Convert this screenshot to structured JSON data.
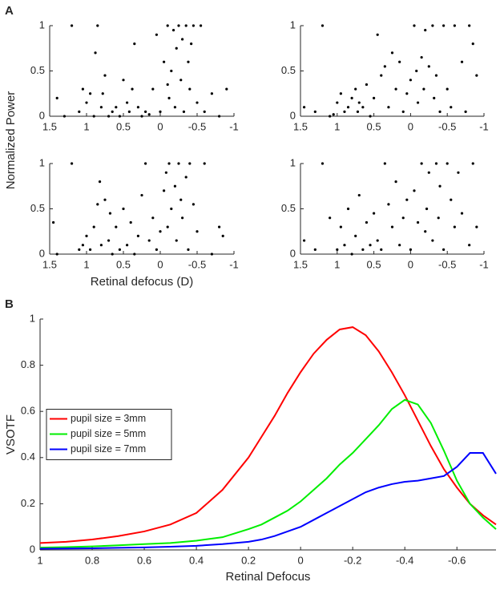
{
  "chart_data": [
    {
      "type": "scatter",
      "panel_label": "A",
      "color": "#000000",
      "x": [
        1.4,
        1.3,
        1.2,
        1.1,
        1.05,
        1.0,
        0.95,
        0.9,
        0.88,
        0.85,
        0.8,
        0.78,
        0.75,
        0.7,
        0.65,
        0.6,
        0.55,
        0.5,
        0.45,
        0.42,
        0.38,
        0.35,
        0.3,
        0.25,
        0.2,
        0.15,
        0.1,
        0.05,
        0,
        -0.05,
        -0.1,
        -0.1,
        -0.12,
        -0.15,
        -0.18,
        -0.2,
        -0.22,
        -0.25,
        -0.28,
        -0.3,
        -0.32,
        -0.35,
        -0.38,
        -0.4,
        -0.42,
        -0.45,
        -0.5,
        -0.55,
        -0.6,
        -0.7,
        -0.8,
        -0.9
      ],
      "values": [
        0.2,
        0,
        1,
        0.05,
        0.3,
        0.15,
        0.25,
        0,
        0.7,
        1,
        0.1,
        0.25,
        0.45,
        0,
        0.05,
        0.1,
        0,
        0.4,
        0.15,
        0.05,
        0.3,
        0.8,
        0.1,
        0,
        0.05,
        0.02,
        0.3,
        0.9,
        0.05,
        0.6,
        1,
        0.35,
        0.2,
        0.5,
        0.95,
        0.1,
        0.75,
        1,
        0.4,
        0.85,
        0.05,
        1,
        0.6,
        0.3,
        0.8,
        1,
        0.15,
        1,
        0.05,
        0.25,
        0,
        0.3
      ],
      "xlim": [
        1.5,
        -1
      ],
      "xticks": [
        1.5,
        1,
        0.5,
        0,
        -0.5,
        -1
      ],
      "ylim": [
        0,
        1
      ],
      "yticks": [
        0,
        0.5,
        1
      ]
    },
    {
      "type": "scatter",
      "color": "#000000",
      "x": [
        1.45,
        1.3,
        1.2,
        1.1,
        1.05,
        1.0,
        0.95,
        0.9,
        0.85,
        0.8,
        0.75,
        0.72,
        0.7,
        0.65,
        0.6,
        0.55,
        0.5,
        0.45,
        0.4,
        0.35,
        0.3,
        0.25,
        0.2,
        0.15,
        0.1,
        0.05,
        0,
        -0.05,
        -0.08,
        -0.1,
        -0.15,
        -0.18,
        -0.2,
        -0.25,
        -0.3,
        -0.32,
        -0.35,
        -0.4,
        -0.45,
        -0.5,
        -0.55,
        -0.6,
        -0.7,
        -0.75,
        -0.8,
        -0.85,
        -0.9
      ],
      "values": [
        0.1,
        0.05,
        1,
        0,
        0.02,
        0.15,
        0.25,
        0.05,
        0.1,
        0.2,
        0.3,
        0.05,
        0.15,
        0.1,
        0.35,
        0,
        0.2,
        0.9,
        0.45,
        0.55,
        0.1,
        0.7,
        0.3,
        0.6,
        0.05,
        0.25,
        0.4,
        1,
        0.5,
        0.15,
        0.65,
        0.3,
        0.95,
        0.55,
        1,
        0.2,
        0.45,
        0.05,
        1,
        0.3,
        0.1,
        1,
        0.6,
        0.05,
        1,
        0.8,
        0.45
      ],
      "xlim": [
        1.5,
        -1
      ],
      "xticks": [
        1.5,
        1,
        0.5,
        0,
        -0.5,
        -1
      ],
      "ylim": [
        0,
        1
      ],
      "yticks": [
        0,
        0.5,
        1
      ]
    },
    {
      "type": "scatter",
      "color": "#000000",
      "xlabel": "Retinal defocus (D)",
      "ylabel": "Normalized Power",
      "x": [
        1.45,
        1.4,
        1.2,
        1.1,
        1.05,
        1.0,
        0.95,
        0.9,
        0.85,
        0.82,
        0.8,
        0.75,
        0.7,
        0.68,
        0.65,
        0.6,
        0.55,
        0.5,
        0.45,
        0.4,
        0.35,
        0.3,
        0.25,
        0.2,
        0.15,
        0.1,
        0.05,
        0,
        -0.05,
        -0.08,
        -0.1,
        -0.12,
        -0.15,
        -0.2,
        -0.22,
        -0.25,
        -0.28,
        -0.3,
        -0.35,
        -0.38,
        -0.4,
        -0.45,
        -0.5,
        -0.6,
        -0.7,
        -0.8,
        -0.85
      ],
      "values": [
        0.35,
        0,
        1,
        0.05,
        0.1,
        0.2,
        0.05,
        0.3,
        0.55,
        0.8,
        0.1,
        0.6,
        0.15,
        0.45,
        0,
        0.3,
        0.05,
        0.5,
        0.1,
        0.35,
        0,
        0.2,
        0.65,
        1,
        0.15,
        0.4,
        0.05,
        0.25,
        0.7,
        0.9,
        0.3,
        1,
        0.5,
        0.75,
        0.15,
        1,
        0.6,
        0.4,
        0.85,
        0.05,
        1,
        0.55,
        0.25,
        1,
        0,
        0.3,
        0.2
      ],
      "xlim": [
        1.5,
        -1
      ],
      "xticks": [
        1.5,
        1,
        0.5,
        0,
        -0.5,
        -1
      ],
      "ylim": [
        0,
        1
      ],
      "yticks": [
        0,
        0.5,
        1
      ]
    },
    {
      "type": "scatter",
      "color": "#000000",
      "x": [
        1.45,
        1.3,
        1.2,
        1.1,
        1.0,
        0.95,
        0.9,
        0.85,
        0.8,
        0.75,
        0.7,
        0.65,
        0.6,
        0.55,
        0.5,
        0.45,
        0.4,
        0.35,
        0.3,
        0.25,
        0.2,
        0.15,
        0.1,
        0.05,
        0,
        -0.05,
        -0.1,
        -0.15,
        -0.2,
        -0.22,
        -0.25,
        -0.3,
        -0.35,
        -0.38,
        -0.4,
        -0.45,
        -0.5,
        -0.55,
        -0.6,
        -0.65,
        -0.7,
        -0.8,
        -0.85,
        -0.9
      ],
      "values": [
        0.15,
        0.05,
        1,
        0.4,
        0.05,
        0.3,
        0.1,
        0.5,
        0,
        0.2,
        0.65,
        0.05,
        0.35,
        0.1,
        0.45,
        0.15,
        0.05,
        1,
        0.55,
        0.3,
        0.8,
        0.1,
        0.4,
        0.6,
        0.05,
        0.7,
        0.35,
        1,
        0.25,
        0.5,
        0.9,
        0.15,
        1,
        0.4,
        0.75,
        0.05,
        1,
        0.6,
        0.3,
        0.9,
        0.45,
        0.1,
        1,
        0.3
      ],
      "xlim": [
        1.5,
        -1
      ],
      "xticks": [
        1.5,
        1,
        0.5,
        0,
        -0.5,
        -1
      ],
      "ylim": [
        0,
        1
      ],
      "yticks": [
        0,
        0.5,
        1
      ]
    },
    {
      "type": "line",
      "panel_label": "B",
      "xlabel": "Retinal Defocus",
      "ylabel": "VSOTF",
      "legend": "center left",
      "x": [
        1,
        0.9,
        0.8,
        0.7,
        0.6,
        0.5,
        0.4,
        0.3,
        0.2,
        0.15,
        0.1,
        0.05,
        0,
        -0.05,
        -0.1,
        -0.15,
        -0.2,
        -0.25,
        -0.3,
        -0.35,
        -0.4,
        -0.45,
        -0.5,
        -0.55,
        -0.6,
        -0.65,
        -0.7,
        -0.75
      ],
      "series": [
        {
          "name": "pupil size = 3mm",
          "color": "#ff0000",
          "values": [
            0.03,
            0.035,
            0.045,
            0.06,
            0.08,
            0.11,
            0.16,
            0.26,
            0.4,
            0.49,
            0.58,
            0.68,
            0.77,
            0.85,
            0.91,
            0.955,
            0.965,
            0.93,
            0.86,
            0.77,
            0.67,
            0.56,
            0.45,
            0.35,
            0.27,
            0.2,
            0.15,
            0.11
          ]
        },
        {
          "name": "pupil size = 5mm",
          "color": "#00ee00",
          "values": [
            0.01,
            0.012,
            0.015,
            0.02,
            0.025,
            0.03,
            0.04,
            0.055,
            0.09,
            0.11,
            0.14,
            0.17,
            0.21,
            0.26,
            0.31,
            0.37,
            0.42,
            0.48,
            0.54,
            0.61,
            0.65,
            0.63,
            0.55,
            0.43,
            0.3,
            0.2,
            0.14,
            0.09
          ]
        },
        {
          "name": "pupil size = 7mm",
          "color": "#0000ff",
          "values": [
            0.005,
            0.006,
            0.007,
            0.009,
            0.011,
            0.014,
            0.018,
            0.025,
            0.035,
            0.045,
            0.06,
            0.08,
            0.1,
            0.13,
            0.16,
            0.19,
            0.22,
            0.25,
            0.27,
            0.285,
            0.295,
            0.3,
            0.31,
            0.32,
            0.36,
            0.42,
            0.42,
            0.33
          ]
        }
      ],
      "xlim": [
        1,
        -0.75
      ],
      "xticks": [
        1,
        0.8,
        0.6,
        0.4,
        0.2,
        0,
        -0.2,
        -0.4,
        -0.6
      ],
      "ylim": [
        0,
        1
      ],
      "yticks": [
        0,
        0.2,
        0.4,
        0.6,
        0.8,
        1
      ]
    }
  ]
}
